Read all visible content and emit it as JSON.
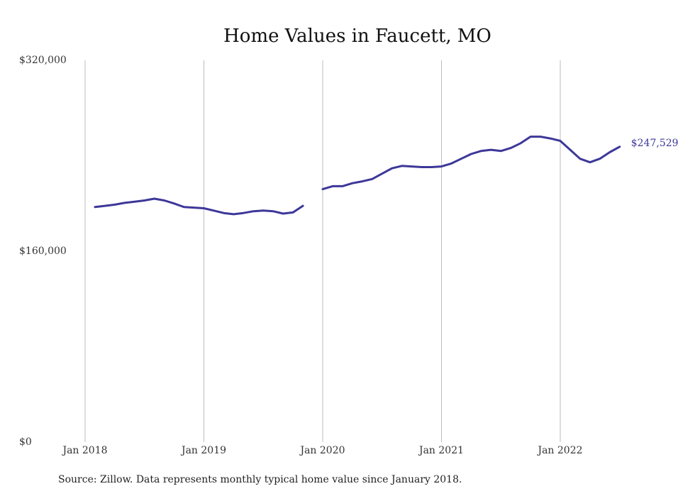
{
  "chart_data": {
    "type": "line",
    "title": "Home Values in Faucett, MO",
    "xlabel": "",
    "ylabel": "",
    "ylim": [
      0,
      320000
    ],
    "y_ticks": [
      {
        "value": 0,
        "label": "$0"
      },
      {
        "value": 160000,
        "label": "$160,000"
      },
      {
        "value": 320000,
        "label": "$320,000"
      }
    ],
    "x_ticks": [
      "Jan 2018",
      "Jan 2019",
      "Jan 2020",
      "Jan 2021",
      "Jan 2022"
    ],
    "grid": "vertical",
    "line_color": "#3d3799",
    "end_label": "$247,529",
    "series": [
      {
        "segments": [
          {
            "x": [
              "2018-02",
              "2018-03",
              "2018-04",
              "2018-05",
              "2018-06",
              "2018-07",
              "2018-08",
              "2018-09",
              "2018-10",
              "2018-11",
              "2018-12",
              "2019-01",
              "2019-02",
              "2019-03",
              "2019-04",
              "2019-05",
              "2019-06",
              "2019-07",
              "2019-08",
              "2019-09",
              "2019-10",
              "2019-11"
            ],
            "y": [
              197000,
              198000,
              199000,
              200500,
              201500,
              202500,
              204000,
              202500,
              200000,
              197000,
              196500,
              196000,
              194000,
              192000,
              191000,
              192000,
              193500,
              194000,
              193500,
              191500,
              192500,
              198000
            ]
          },
          {
            "x": [
              "2020-01",
              "2020-02",
              "2020-03",
              "2020-04",
              "2020-05",
              "2020-06",
              "2020-07",
              "2020-08",
              "2020-09",
              "2020-10",
              "2020-11",
              "2020-12",
              "2021-01",
              "2021-02",
              "2021-03",
              "2021-04",
              "2021-05",
              "2021-06",
              "2021-07",
              "2021-08",
              "2021-09",
              "2021-10",
              "2021-11",
              "2021-12",
              "2022-01",
              "2022-02",
              "2022-03",
              "2022-04",
              "2022-05",
              "2022-06",
              "2022-07"
            ],
            "y": [
              212000,
              214500,
              214500,
              217000,
              218500,
              220500,
              225000,
              229500,
              231500,
              231000,
              230500,
              230500,
              231000,
              233500,
              237500,
              241500,
              244000,
              245000,
              244000,
              246500,
              250500,
              256000,
              256000,
              254500,
              252500,
              245000,
              237500,
              234500,
              237500,
              243000,
              247529
            ]
          }
        ]
      }
    ]
  },
  "footer": {
    "source": "Source: Zillow. Data represents monthly typical home value since January 2018."
  }
}
